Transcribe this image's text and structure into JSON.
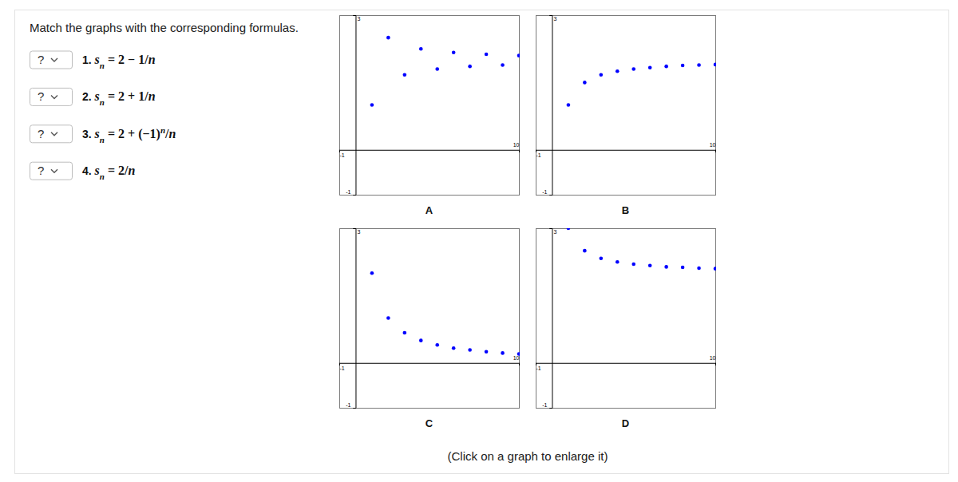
{
  "page": {
    "instruction": "Match the graphs with the corresponding formulas.",
    "note": "(Click on a graph to enlarge it)",
    "items": [
      {
        "selection": "?",
        "number": "1.",
        "formula": [
          {
            "text": "s",
            "style": "italic"
          },
          {
            "text": "n",
            "style": "sub"
          },
          {
            "text": " = 2 − 1/",
            "style": "normal"
          },
          {
            "text": "n",
            "style": "italic"
          }
        ]
      },
      {
        "selection": "?",
        "number": "2.",
        "formula": [
          {
            "text": "s",
            "style": "italic"
          },
          {
            "text": "n",
            "style": "sub"
          },
          {
            "text": " = 2 + 1/",
            "style": "normal"
          },
          {
            "text": "n",
            "style": "italic"
          }
        ]
      },
      {
        "selection": "?",
        "number": "3.",
        "formula": [
          {
            "text": "s",
            "style": "italic"
          },
          {
            "text": "n",
            "style": "sub"
          },
          {
            "text": " = 2 + (−1)",
            "style": "normal"
          },
          {
            "text": "n",
            "style": "sup"
          },
          {
            "text": "/",
            "style": "normal"
          },
          {
            "text": "n",
            "style": "italic"
          }
        ]
      },
      {
        "selection": "?",
        "number": "4.",
        "formula": [
          {
            "text": "s",
            "style": "italic"
          },
          {
            "text": "n",
            "style": "sub"
          },
          {
            "text": " = 2/",
            "style": "normal"
          },
          {
            "text": "n",
            "style": "italic"
          }
        ]
      }
    ]
  },
  "chart_data": [
    {
      "type": "scatter",
      "title": "A",
      "x": [
        1,
        2,
        3,
        4,
        5,
        6,
        7,
        8,
        9,
        10
      ],
      "values": [
        1,
        2.5,
        1.67,
        2.25,
        1.8,
        2.17,
        1.86,
        2.13,
        1.89,
        2.1
      ],
      "color": "#0000ff",
      "marker": "circle",
      "xlim": [
        -1,
        10
      ],
      "ylim": [
        -1,
        3
      ],
      "xticks": [
        -1,
        10
      ],
      "yticks": [
        -1,
        3
      ]
    },
    {
      "type": "scatter",
      "title": "B",
      "x": [
        1,
        2,
        3,
        4,
        5,
        6,
        7,
        8,
        9,
        10
      ],
      "values": [
        1,
        1.5,
        1.67,
        1.75,
        1.8,
        1.83,
        1.86,
        1.88,
        1.89,
        1.9
      ],
      "color": "#0000ff",
      "marker": "circle",
      "xlim": [
        -1,
        10
      ],
      "ylim": [
        -1,
        3
      ],
      "xticks": [
        -1,
        10
      ],
      "yticks": [
        -1,
        3
      ]
    },
    {
      "type": "scatter",
      "title": "C",
      "x": [
        1,
        2,
        3,
        4,
        5,
        6,
        7,
        8,
        9,
        10
      ],
      "values": [
        2,
        1,
        0.67,
        0.5,
        0.4,
        0.33,
        0.29,
        0.25,
        0.22,
        0.2
      ],
      "color": "#0000ff",
      "marker": "circle",
      "xlim": [
        -1,
        10
      ],
      "ylim": [
        -1,
        3
      ],
      "xticks": [
        -1,
        10
      ],
      "yticks": [
        -1,
        3
      ]
    },
    {
      "type": "scatter",
      "title": "D",
      "x": [
        1,
        2,
        3,
        4,
        5,
        6,
        7,
        8,
        9,
        10
      ],
      "values": [
        3,
        2.5,
        2.33,
        2.25,
        2.2,
        2.17,
        2.14,
        2.13,
        2.11,
        2.1
      ],
      "color": "#0000ff",
      "marker": "circle",
      "xlim": [
        -1,
        10
      ],
      "ylim": [
        -1,
        3
      ],
      "xticks": [
        -1,
        10
      ],
      "yticks": [
        -1,
        3
      ]
    }
  ]
}
